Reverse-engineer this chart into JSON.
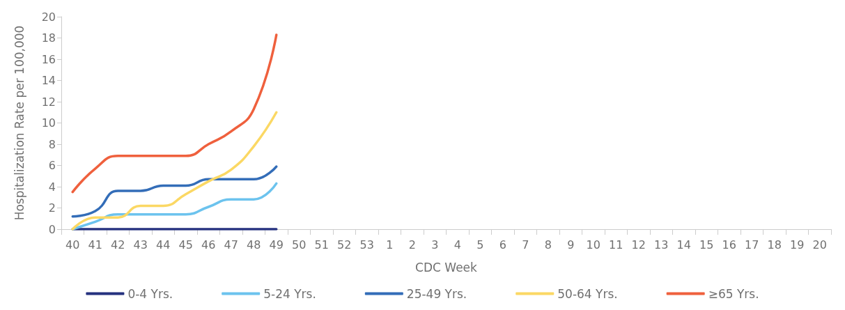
{
  "chart_data": {
    "type": "line",
    "xlabel": "CDC Week",
    "ylabel": "Hospitalization Rate per 100,000",
    "categories": [
      "40",
      "41",
      "42",
      "43",
      "44",
      "45",
      "46",
      "47",
      "48",
      "49",
      "50",
      "51",
      "52",
      "53",
      "1",
      "2",
      "3",
      "4",
      "5",
      "6",
      "7",
      "8",
      "9",
      "10",
      "11",
      "12",
      "13",
      "14",
      "15",
      "16",
      "17",
      "18",
      "19",
      "20"
    ],
    "series": [
      {
        "name": "0-4 Yrs.",
        "color": "#25317f",
        "values": [
          0,
          0,
          0,
          0,
          0,
          0,
          0,
          0,
          0,
          0,
          null,
          null,
          null,
          null,
          null,
          null,
          null,
          null,
          null,
          null,
          null,
          null,
          null,
          null,
          null,
          null,
          null,
          null,
          null,
          null,
          null,
          null,
          null,
          null
        ]
      },
      {
        "name": "5-24 Yrs.",
        "color": "#6cc3ee",
        "values": [
          0,
          0.7,
          1.4,
          1.4,
          1.4,
          1.4,
          2.1,
          2.8,
          2.8,
          4.3,
          null,
          null,
          null,
          null,
          null,
          null,
          null,
          null,
          null,
          null,
          null,
          null,
          null,
          null,
          null,
          null,
          null,
          null,
          null,
          null,
          null,
          null,
          null,
          null
        ]
      },
      {
        "name": "25-49 Yrs.",
        "color": "#336db8",
        "values": [
          1.2,
          1.7,
          3.6,
          3.6,
          4.1,
          4.1,
          4.7,
          4.7,
          4.7,
          5.9,
          null,
          null,
          null,
          null,
          null,
          null,
          null,
          null,
          null,
          null,
          null,
          null,
          null,
          null,
          null,
          null,
          null,
          null,
          null,
          null,
          null,
          null,
          null,
          null
        ]
      },
      {
        "name": "50-64 Yrs.",
        "color": "#fbd864",
        "values": [
          0,
          1.1,
          1.1,
          2.2,
          2.2,
          3.3,
          4.5,
          5.6,
          7.8,
          11.0,
          null,
          null,
          null,
          null,
          null,
          null,
          null,
          null,
          null,
          null,
          null,
          null,
          null,
          null,
          null,
          null,
          null,
          null,
          null,
          null,
          null,
          null,
          null,
          null
        ]
      },
      {
        "name": "≥65 Yrs.",
        "color": "#ef603d",
        "values": [
          3.5,
          5.7,
          6.9,
          6.9,
          6.9,
          6.9,
          8.0,
          9.2,
          11.3,
          18.3,
          null,
          null,
          null,
          null,
          null,
          null,
          null,
          null,
          null,
          null,
          null,
          null,
          null,
          null,
          null,
          null,
          null,
          null,
          null,
          null,
          null,
          null,
          null,
          null
        ]
      }
    ],
    "ylim": [
      0,
      20
    ],
    "yticks": [
      0,
      2,
      4,
      6,
      8,
      10,
      12,
      14,
      16,
      18,
      20
    ],
    "grid": false,
    "legend": "bottom",
    "marker": "none",
    "line_style": "solid"
  }
}
